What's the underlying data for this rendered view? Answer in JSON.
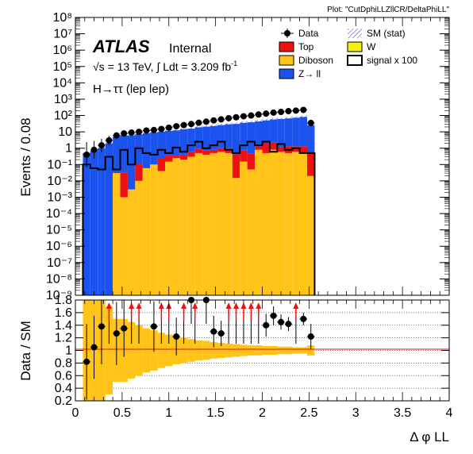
{
  "plot_tag": "Plot: \"CutDphiLLZllCR/DeltaPhiLL\"",
  "atlas": {
    "brand": "ATLAS",
    "status": "Internal",
    "energy_label": "√s = 13 TeV, ∫ Ldt = 3.209 fb",
    "energy_sup": "-1",
    "channel": "H→ττ (lep lep)"
  },
  "legend": [
    {
      "key": "data",
      "label": "Data",
      "style": "marker",
      "color": "#000000"
    },
    {
      "key": "sm_stat",
      "label": "SM (stat)",
      "style": "hatch",
      "color": "#3b3bd6"
    },
    {
      "key": "top",
      "label": "Top",
      "style": "fill",
      "color": "#ee1111"
    },
    {
      "key": "w",
      "label": "W",
      "style": "fill",
      "color": "#f5ee11"
    },
    {
      "key": "diboson",
      "label": "Diboson",
      "style": "fill",
      "color": "#ffc417"
    },
    {
      "key": "signal",
      "label": "signal x 100",
      "style": "line",
      "color": "#000000"
    },
    {
      "key": "zll",
      "label": "Z→ ll",
      "style": "fill",
      "color": "#1a53ee"
    }
  ],
  "chart_data": [
    {
      "type": "bar",
      "panel": "main",
      "ylabel": "Events / 0.08",
      "yscale": "log",
      "ylim": [
        1e-09,
        100000000.0
      ],
      "xlim": [
        0,
        4
      ],
      "stacked": true,
      "ytick_labels": [
        "10⁻⁹",
        "10⁻⁸",
        "10⁻⁷",
        "10⁻⁶",
        "10⁻⁵",
        "10⁻⁴",
        "10⁻³",
        "10⁻²",
        "10⁻¹",
        "1",
        "10",
        "10²",
        "10³",
        "10⁴",
        "10⁵",
        "10⁶",
        "10⁷",
        "10⁸"
      ],
      "bin_width": 0.08,
      "bin_starts": [
        0.08,
        0.16,
        0.24,
        0.32,
        0.4,
        0.48,
        0.56,
        0.64,
        0.72,
        0.8,
        0.88,
        0.96,
        1.04,
        1.12,
        1.2,
        1.28,
        1.36,
        1.44,
        1.52,
        1.6,
        1.68,
        1.76,
        1.84,
        1.92,
        2.0,
        2.08,
        2.16,
        2.24,
        2.32,
        2.4,
        2.48
      ],
      "series": [
        {
          "name": "Diboson",
          "values": [
            0,
            0,
            0,
            0,
            0.03,
            0.001,
            0.003,
            0.01,
            0.06,
            0.1,
            0.04,
            0.15,
            0.25,
            0.2,
            0.3,
            0.5,
            0.4,
            0.5,
            0.6,
            0.5,
            0.015,
            0.15,
            0.05,
            0.8,
            0.5,
            0.8,
            0.6,
            0.5,
            0.6,
            0.5,
            0.02
          ]
        },
        {
          "name": "Top",
          "values": [
            0,
            0,
            0,
            0,
            0,
            0.03,
            0,
            0.1,
            0,
            0,
            0.2,
            0.2,
            0.1,
            0.2,
            0.3,
            0.4,
            0.3,
            0.3,
            0.4,
            0.5,
            0.4,
            0.6,
            0.4,
            0.5,
            1.5,
            1.5,
            0.6,
            0.8,
            0.7,
            0.8,
            0.5
          ]
        },
        {
          "name": "Z→ ll",
          "values": [
            0.5,
            0.7,
            1,
            2,
            5,
            6,
            6,
            7,
            8,
            9,
            10,
            11,
            12,
            14,
            15,
            18,
            20,
            22,
            25,
            28,
            30,
            35,
            38,
            42,
            48,
            55,
            60,
            65,
            72,
            80,
            25
          ]
        }
      ],
      "signal_x100": [
        0.1,
        0.06,
        0.05,
        0.3,
        0.05,
        0.8,
        0.1,
        1.0,
        0.5,
        0.4,
        0.8,
        0.5,
        1.1,
        0.6,
        1.5,
        2.5,
        1.0,
        1.5,
        2.5,
        0.8,
        0.5,
        1.5,
        2.5,
        1.5,
        2.5,
        0.6,
        1.8,
        0.8,
        1.0,
        0.5,
        0.5
      ],
      "data_points": [
        {
          "x": 0.12,
          "y": 0.4
        },
        {
          "x": 0.2,
          "y": 0.8
        },
        {
          "x": 0.28,
          "y": 1.5
        },
        {
          "x": 0.36,
          "y": 3
        },
        {
          "x": 0.44,
          "y": 6
        },
        {
          "x": 0.52,
          "y": 8
        },
        {
          "x": 0.6,
          "y": 9
        },
        {
          "x": 0.68,
          "y": 10
        },
        {
          "x": 0.76,
          "y": 12
        },
        {
          "x": 0.84,
          "y": 13
        },
        {
          "x": 0.92,
          "y": 15
        },
        {
          "x": 1.0,
          "y": 18
        },
        {
          "x": 1.08,
          "y": 22
        },
        {
          "x": 1.16,
          "y": 26
        },
        {
          "x": 1.24,
          "y": 30
        },
        {
          "x": 1.32,
          "y": 36
        },
        {
          "x": 1.4,
          "y": 42
        },
        {
          "x": 1.48,
          "y": 50
        },
        {
          "x": 1.56,
          "y": 58
        },
        {
          "x": 1.64,
          "y": 68
        },
        {
          "x": 1.72,
          "y": 78
        },
        {
          "x": 1.8,
          "y": 90
        },
        {
          "x": 1.88,
          "y": 100
        },
        {
          "x": 1.96,
          "y": 115
        },
        {
          "x": 2.04,
          "y": 130
        },
        {
          "x": 2.12,
          "y": 150
        },
        {
          "x": 2.2,
          "y": 165
        },
        {
          "x": 2.28,
          "y": 185
        },
        {
          "x": 2.36,
          "y": 200
        },
        {
          "x": 2.44,
          "y": 220
        },
        {
          "x": 2.52,
          "y": 35
        }
      ]
    },
    {
      "type": "scatter",
      "panel": "ratio",
      "ylabel": "Data / SM",
      "xlabel": "Δ φ LL",
      "ylim": [
        0.2,
        1.8
      ],
      "xlim": [
        0,
        4
      ],
      "yticks": [
        0.2,
        0.4,
        0.6,
        0.8,
        1,
        1.2,
        1.4,
        1.6,
        1.8
      ],
      "ytick_labels": [
        "0.2",
        "0.4",
        "0.6",
        "0.8",
        "1",
        "1.2",
        "1.4",
        "1.6",
        "1.8"
      ],
      "xticks": [
        0,
        0.5,
        1,
        1.5,
        2,
        2.5,
        3,
        3.5,
        4
      ],
      "xtick_labels": [
        "0",
        "0.5",
        "1",
        "1.5",
        "2",
        "2.5",
        "3",
        "3.5",
        "4"
      ],
      "reference_line": 1,
      "band_halfwidth": [
        0.8,
        0.8,
        0.8,
        0.7,
        0.5,
        0.5,
        0.45,
        0.4,
        0.35,
        0.32,
        0.28,
        0.25,
        0.22,
        0.2,
        0.18,
        0.16,
        0.15,
        0.13,
        0.12,
        0.11,
        0.1,
        0.09,
        0.08,
        0.08,
        0.07,
        0.07,
        0.06,
        0.06,
        0.05,
        0.05,
        0.08
      ],
      "points": [
        {
          "x": 0.12,
          "y": 0.82,
          "err": 0.6
        },
        {
          "x": 0.2,
          "y": 1.05,
          "err": 0.5
        },
        {
          "x": 0.28,
          "y": 1.38,
          "err": 0.6
        },
        {
          "x": 0.44,
          "y": 1.27,
          "err": 0.5
        },
        {
          "x": 0.52,
          "y": 1.35,
          "err": 0.45
        },
        {
          "x": 0.84,
          "y": 1.38,
          "err": 0.4
        },
        {
          "x": 1.08,
          "y": 1.22,
          "err": 0.3
        },
        {
          "x": 1.48,
          "y": 1.3,
          "err": 0.25
        },
        {
          "x": 1.56,
          "y": 1.27,
          "err": 0.2
        },
        {
          "x": 2.04,
          "y": 1.4,
          "err": 0.18
        },
        {
          "x": 2.12,
          "y": 1.55,
          "err": 0.15
        },
        {
          "x": 2.2,
          "y": 1.45,
          "err": 0.12
        },
        {
          "x": 2.28,
          "y": 1.42,
          "err": 0.11
        },
        {
          "x": 2.44,
          "y": 1.5,
          "err": 0.1
        },
        {
          "x": 2.52,
          "y": 1.22,
          "err": 0.2
        }
      ],
      "overflow_markers_x": [
        0.36,
        0.6,
        0.68,
        0.92,
        1.0,
        1.16,
        1.28,
        1.64,
        1.72,
        1.8,
        1.88,
        1.96,
        2.36
      ],
      "outside_points_x": [
        1.24,
        1.4
      ]
    }
  ]
}
